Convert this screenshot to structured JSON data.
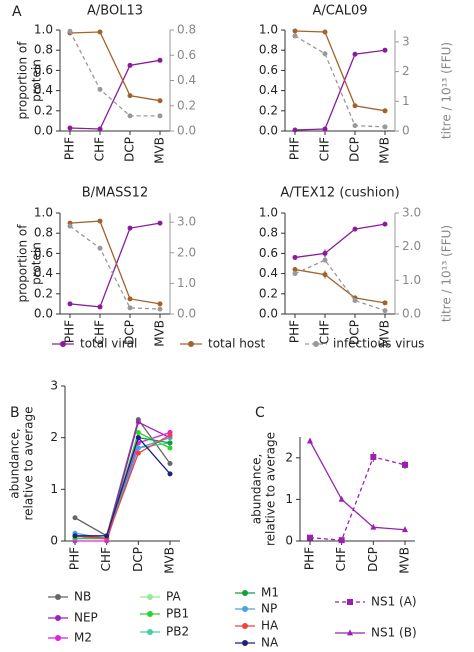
{
  "chart_data": [
    {
      "type": "line",
      "panel": "A",
      "title": "A/BOL13",
      "categories": [
        "PHF",
        "CHF",
        "DCP",
        "MVB"
      ],
      "ylabel": [
        "proportion of",
        "protein"
      ],
      "ylim": [
        0,
        1
      ],
      "yticks": [
        {
          "value": 0,
          "label": "0.0"
        },
        0.2,
        0.4,
        0.6,
        0.8,
        {
          "value": 1,
          "label": "1.0"
        }
      ],
      "y2lim": [
        0,
        0.8
      ],
      "y2ticks": [
        {
          "value": 0,
          "label": "0.0"
        },
        0.2,
        0.4,
        0.6,
        0.8
      ],
      "series": [
        {
          "name": "total viral",
          "color": "#8a1c9c",
          "values": [
            0.03,
            0.02,
            0.65,
            0.7
          ]
        },
        {
          "name": "total host",
          "color": "#a0632b",
          "values": [
            0.97,
            0.98,
            0.35,
            0.3
          ]
        },
        {
          "name": "infectious virus",
          "color": "#999999",
          "dashed": true,
          "axis": "y2",
          "values": [
            0.79,
            0.33,
            0.12,
            0.12
          ]
        }
      ]
    },
    {
      "type": "line",
      "title": "A/CAL09",
      "categories": [
        "PHF",
        "CHF",
        "DCP",
        "MVB"
      ],
      "ylim": [
        0,
        1
      ],
      "yticks": [
        {
          "value": 0,
          "label": "0.0"
        },
        0.2,
        0.4,
        0.6,
        0.8,
        {
          "value": 1,
          "label": "1.0"
        }
      ],
      "y2label": "titre / 10¹³ (FFU)",
      "y2lim": [
        0,
        3.4
      ],
      "y2ticks": [
        0,
        1,
        2,
        3
      ],
      "series": [
        {
          "color": "#8a1c9c",
          "values": [
            0.01,
            0.02,
            0.76,
            0.8
          ]
        },
        {
          "color": "#a0632b",
          "values": [
            0.99,
            0.98,
            0.25,
            0.2
          ]
        },
        {
          "color": "#999999",
          "dashed": true,
          "axis": "y2",
          "values": [
            3.2,
            2.6,
            0.18,
            0.14
          ]
        }
      ]
    },
    {
      "type": "line",
      "title": "B/MASS12",
      "categories": [
        "PHF",
        "CHF",
        "DCP",
        "MVB"
      ],
      "ylabel": [
        "proportion of",
        "protein"
      ],
      "ylim": [
        0,
        1
      ],
      "yticks": [
        {
          "value": 0,
          "label": "0.0"
        },
        0.2,
        0.4,
        0.6,
        0.8,
        {
          "value": 1,
          "label": "1.0"
        }
      ],
      "y2lim": [
        0,
        3.3
      ],
      "y2ticks": [
        {
          "value": 0,
          "label": "0.0"
        },
        {
          "value": 1,
          "label": "1.0"
        },
        {
          "value": 2,
          "label": "2.0"
        },
        {
          "value": 3,
          "label": "3.0"
        }
      ],
      "series": [
        {
          "color": "#8a1c9c",
          "values": [
            0.1,
            0.07,
            0.85,
            0.9
          ]
        },
        {
          "color": "#a0632b",
          "values": [
            0.9,
            0.92,
            0.15,
            0.1
          ]
        },
        {
          "color": "#999999",
          "dashed": true,
          "axis": "y2",
          "values": [
            2.87,
            2.15,
            0.2,
            0.16
          ]
        }
      ]
    },
    {
      "type": "line",
      "title": "A/TEX12 (cushion)",
      "categories": [
        "PHF",
        "CHF",
        "DCP",
        "MVB"
      ],
      "ylim": [
        0,
        1
      ],
      "yticks": [
        {
          "value": 0,
          "label": "0.0"
        },
        0.2,
        0.4,
        0.6,
        0.8,
        {
          "value": 1,
          "label": "1.0"
        }
      ],
      "y2label": "titre / 10¹³ (FFU)",
      "y2lim": [
        0,
        3
      ],
      "y2ticks": [
        {
          "value": 0,
          "label": "0.0"
        },
        {
          "value": 1,
          "label": "1.0"
        },
        {
          "value": 2,
          "label": "2.0"
        },
        {
          "value": 3,
          "label": "3.0"
        }
      ],
      "series": [
        {
          "color": "#8a1c9c",
          "values": [
            0.56,
            0.6,
            0.84,
            0.89
          ],
          "errors": [
            0.01,
            0.04,
            0.01,
            0.01
          ]
        },
        {
          "color": "#a0632b",
          "values": [
            0.44,
            0.39,
            0.16,
            0.11
          ],
          "errors": [
            0.01,
            0.04,
            0.01,
            0.01
          ]
        },
        {
          "color": "#999999",
          "dashed": true,
          "axis": "y2",
          "values": [
            1.2,
            1.6,
            0.4,
            0.1
          ]
        }
      ]
    },
    {
      "type": "line",
      "panel": "B",
      "categories": [
        "PHF",
        "CHF",
        "DCP",
        "MVB"
      ],
      "ylabel": [
        "abundance,",
        "relative to average"
      ],
      "ylim": [
        0,
        3
      ],
      "yticks": [
        0,
        1,
        2,
        3
      ],
      "series": [
        {
          "name": "NB",
          "color": "#666666",
          "values": [
            0.45,
            0.1,
            2.35,
            1.5
          ]
        },
        {
          "name": "NEP",
          "color": "#a020c0",
          "values": [
            0.05,
            0.05,
            2.3,
            2.0
          ]
        },
        {
          "name": "M2",
          "color": "#e020e0",
          "values": [
            0.0,
            0.0,
            1.9,
            2.1
          ]
        },
        {
          "name": "PA",
          "color": "#90ee90",
          "values": [
            0.1,
            0.05,
            2.0,
            1.9
          ]
        },
        {
          "name": "PB1",
          "color": "#30d030",
          "values": [
            0.05,
            0.05,
            2.1,
            1.8
          ]
        },
        {
          "name": "PB2",
          "color": "#40d0a0",
          "values": [
            0.1,
            0.05,
            1.8,
            1.9
          ]
        },
        {
          "name": "M1",
          "color": "#10a040",
          "values": [
            0.1,
            0.05,
            2.0,
            1.9
          ]
        },
        {
          "name": "NP",
          "color": "#4aa0e0",
          "values": [
            0.15,
            0.05,
            1.8,
            2.0
          ]
        },
        {
          "name": "HA",
          "color": "#f04040",
          "values": [
            0.1,
            0.05,
            1.7,
            2.05
          ]
        },
        {
          "name": "NA",
          "color": "#1a237e",
          "values": [
            0.1,
            0.1,
            2.0,
            1.3
          ]
        }
      ]
    },
    {
      "type": "line",
      "panel": "C",
      "categories": [
        "PHF",
        "CHF",
        "DCP",
        "MVB"
      ],
      "ylabel": [
        "abundance,",
        "relative to average"
      ],
      "ylim": [
        0,
        2.5
      ],
      "yticks": [
        0,
        1,
        2
      ],
      "series": [
        {
          "name": "NS1 (A)",
          "color": "#9b1fb0",
          "dashed": true,
          "marker": "square",
          "values": [
            0.08,
            0.02,
            2.02,
            1.83
          ],
          "errors": [
            0.03,
            0.02,
            0.12,
            0.1
          ]
        },
        {
          "name": "NS1 (B)",
          "color": "#9b1fb0",
          "marker": "triangle",
          "values": [
            2.4,
            1.0,
            0.33,
            0.27
          ]
        }
      ]
    }
  ]
}
